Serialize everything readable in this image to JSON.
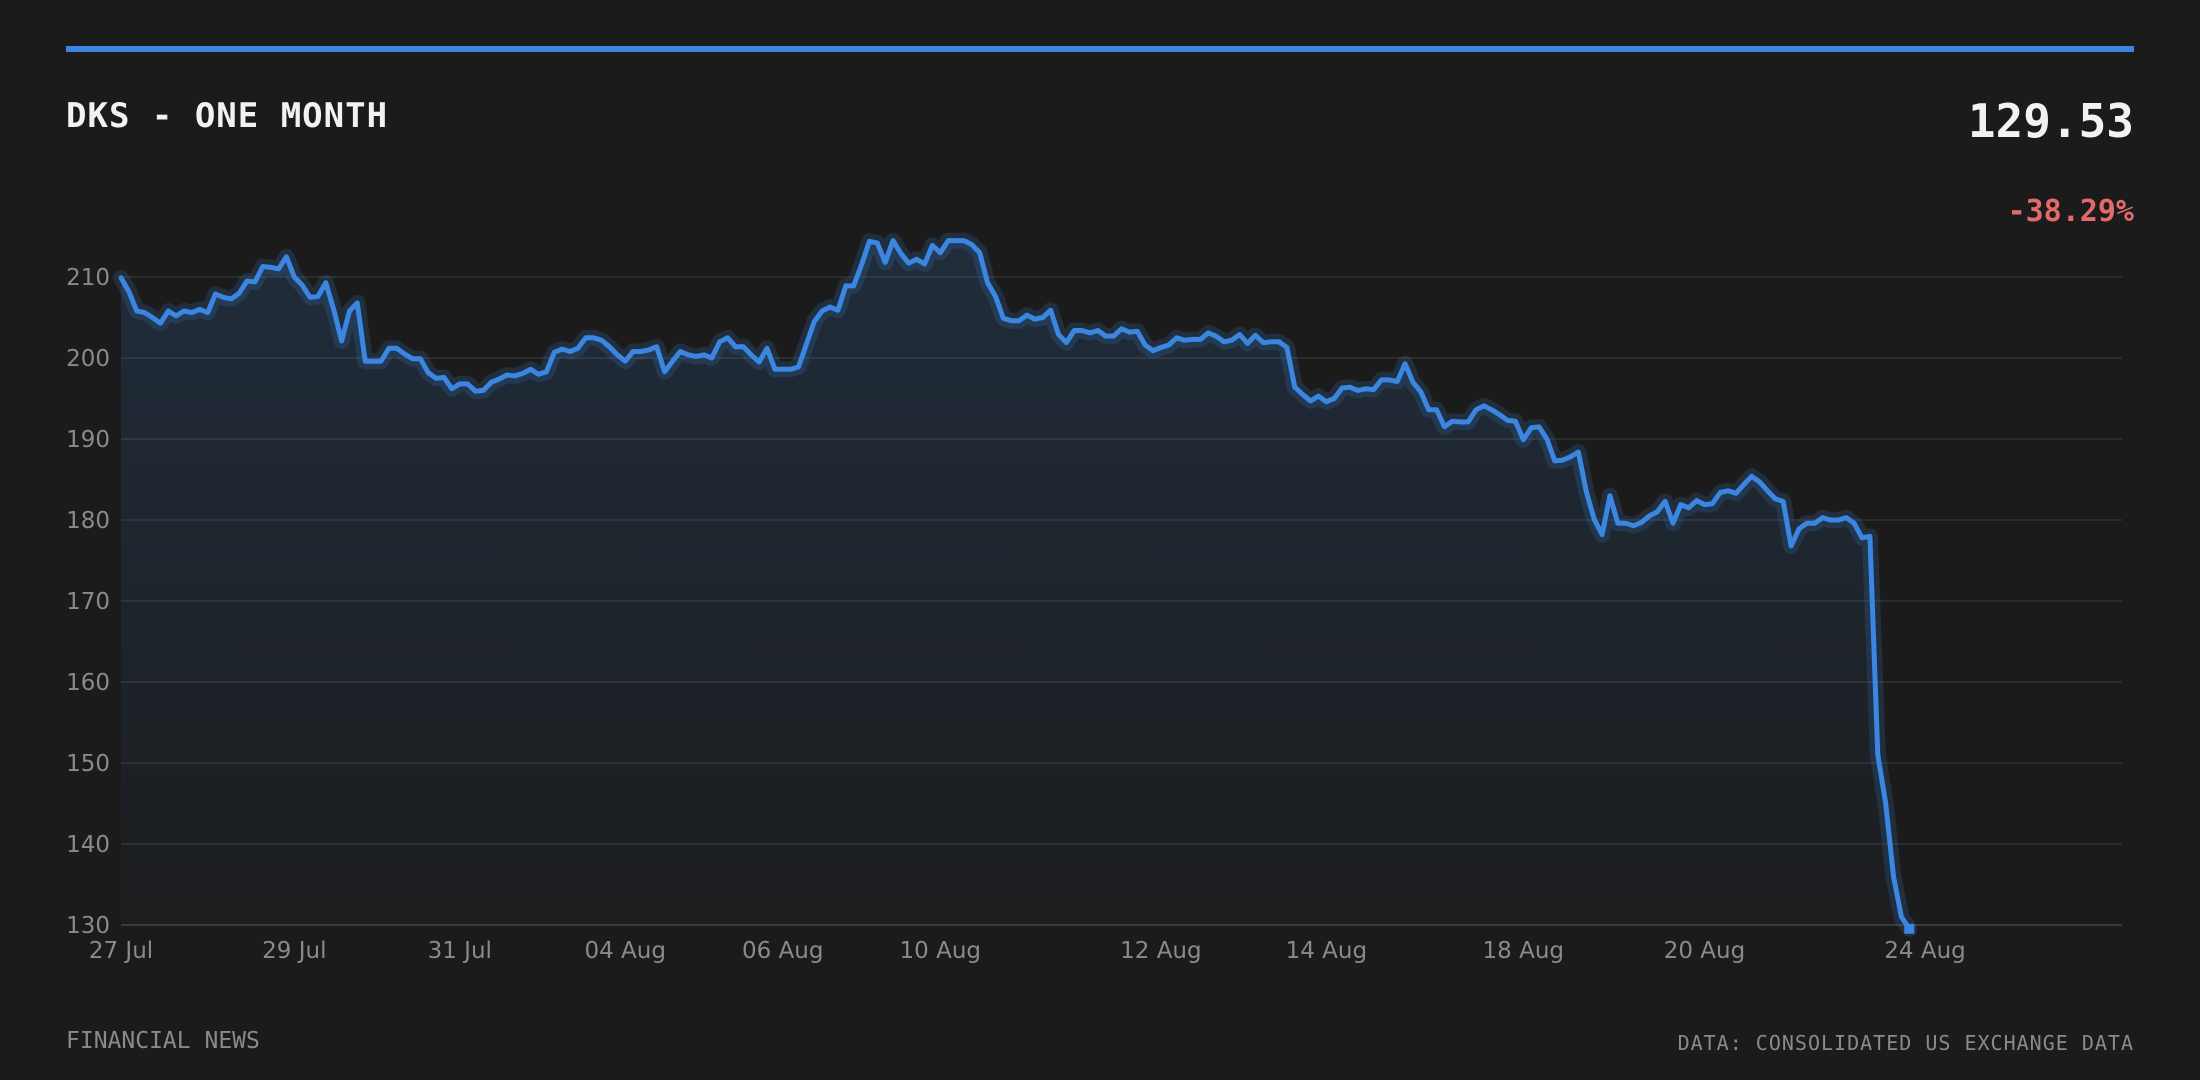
{
  "header": {
    "title": "DKS - ONE MONTH",
    "price": "129.53",
    "change": "-38.29%"
  },
  "footer": {
    "left": "FINANCIAL NEWS",
    "right": "DATA: CONSOLIDATED US EXCHANGE DATA"
  },
  "colors": {
    "accent": "#3a86e0",
    "negative": "#e26a6a",
    "background": "#1b1b1b"
  },
  "chart_data": {
    "type": "line",
    "title": "DKS - ONE MONTH",
    "xlabel": "",
    "ylabel": "",
    "ylim": [
      130,
      210
    ],
    "yticks": [
      210,
      200,
      190,
      180,
      170,
      160,
      150,
      140,
      130
    ],
    "xlim": [
      0,
      254
    ],
    "xticks": [
      {
        "label": "27 Jul",
        "x": 0
      },
      {
        "label": "29 Jul",
        "x": 22
      },
      {
        "label": "31 Jul",
        "x": 43
      },
      {
        "label": "04 Aug",
        "x": 64
      },
      {
        "label": "06 Aug",
        "x": 84
      },
      {
        "label": "10 Aug",
        "x": 104
      },
      {
        "label": "12 Aug",
        "x": 132
      },
      {
        "label": "14 Aug",
        "x": 153
      },
      {
        "label": "18 Aug",
        "x": 178
      },
      {
        "label": "20 Aug",
        "x": 201
      },
      {
        "label": "24 Aug",
        "x": 229
      }
    ],
    "grid": true,
    "area_fill": true,
    "series": [
      {
        "name": "",
        "color": "#3a86e0",
        "points": [
          [
            0,
            209.9
          ],
          [
            1,
            208.2
          ],
          [
            2,
            205.8
          ],
          [
            3,
            205.6
          ],
          [
            4,
            205.0
          ],
          [
            5,
            204.3
          ],
          [
            6,
            205.8
          ],
          [
            7,
            205.2
          ],
          [
            8,
            205.8
          ],
          [
            9,
            205.6
          ],
          [
            10,
            206.0
          ],
          [
            11,
            205.6
          ],
          [
            12,
            207.9
          ],
          [
            13,
            207.5
          ],
          [
            14,
            207.3
          ],
          [
            15,
            208.0
          ],
          [
            16,
            209.5
          ],
          [
            17,
            209.4
          ],
          [
            18,
            211.3
          ],
          [
            19,
            211.2
          ],
          [
            20,
            211.0
          ],
          [
            21,
            212.5
          ],
          [
            22,
            210.0
          ],
          [
            23,
            209.0
          ],
          [
            24,
            207.5
          ],
          [
            25,
            207.6
          ],
          [
            26,
            209.3
          ],
          [
            27,
            206.0
          ],
          [
            28,
            202.1
          ],
          [
            29,
            205.8
          ],
          [
            30,
            206.8
          ],
          [
            31,
            199.6
          ],
          [
            32,
            199.6
          ],
          [
            33,
            199.6
          ],
          [
            34,
            201.2
          ],
          [
            35,
            201.2
          ],
          [
            36,
            200.5
          ],
          [
            37,
            199.9
          ],
          [
            38,
            199.9
          ],
          [
            39,
            198.2
          ],
          [
            40,
            197.5
          ],
          [
            41,
            197.6
          ],
          [
            42,
            196.2
          ],
          [
            43,
            196.8
          ],
          [
            44,
            196.8
          ],
          [
            45,
            195.9
          ],
          [
            46,
            196.0
          ],
          [
            47,
            197.0
          ],
          [
            48,
            197.4
          ],
          [
            49,
            197.9
          ],
          [
            50,
            197.8
          ],
          [
            51,
            198.1
          ],
          [
            52,
            198.6
          ],
          [
            53,
            198.0
          ],
          [
            54,
            198.3
          ],
          [
            55,
            200.7
          ],
          [
            56,
            201.1
          ],
          [
            57,
            200.8
          ],
          [
            58,
            201.2
          ],
          [
            59,
            202.5
          ],
          [
            60,
            202.5
          ],
          [
            61,
            202.2
          ],
          [
            62,
            201.4
          ],
          [
            63,
            200.4
          ],
          [
            64,
            199.6
          ],
          [
            65,
            200.8
          ],
          [
            66,
            200.8
          ],
          [
            67,
            201.0
          ],
          [
            68,
            201.4
          ],
          [
            69,
            198.3
          ],
          [
            70,
            199.6
          ],
          [
            71,
            200.8
          ],
          [
            72,
            200.4
          ],
          [
            73,
            200.2
          ],
          [
            74,
            200.4
          ],
          [
            75,
            200.0
          ],
          [
            76,
            202.0
          ],
          [
            77,
            202.5
          ],
          [
            78,
            201.4
          ],
          [
            79,
            201.4
          ],
          [
            80,
            200.4
          ],
          [
            81,
            199.5
          ],
          [
            82,
            201.2
          ],
          [
            83,
            198.6
          ],
          [
            84,
            198.6
          ],
          [
            85,
            198.6
          ],
          [
            86,
            198.9
          ],
          [
            87,
            201.7
          ],
          [
            88,
            204.5
          ],
          [
            89,
            205.8
          ],
          [
            90,
            206.3
          ],
          [
            91,
            205.9
          ],
          [
            92,
            208.9
          ],
          [
            93,
            208.9
          ],
          [
            94,
            211.5
          ],
          [
            95,
            214.4
          ],
          [
            96,
            214.2
          ],
          [
            97,
            211.8
          ],
          [
            98,
            214.5
          ],
          [
            99,
            212.9
          ],
          [
            100,
            211.7
          ],
          [
            101,
            212.2
          ],
          [
            102,
            211.6
          ],
          [
            103,
            213.9
          ],
          [
            104,
            213.0
          ],
          [
            105,
            214.5
          ],
          [
            106,
            214.5
          ],
          [
            107,
            214.5
          ],
          [
            108,
            214.0
          ],
          [
            109,
            213.0
          ],
          [
            110,
            209.3
          ],
          [
            111,
            207.6
          ],
          [
            112,
            204.9
          ],
          [
            113,
            204.6
          ],
          [
            114,
            204.6
          ],
          [
            115,
            205.3
          ],
          [
            116,
            204.8
          ],
          [
            117,
            205.0
          ],
          [
            118,
            205.9
          ],
          [
            119,
            202.9
          ],
          [
            120,
            201.9
          ],
          [
            121,
            203.4
          ],
          [
            122,
            203.4
          ],
          [
            123,
            203.1
          ],
          [
            124,
            203.4
          ],
          [
            125,
            202.7
          ],
          [
            126,
            202.7
          ],
          [
            127,
            203.6
          ],
          [
            128,
            203.2
          ],
          [
            129,
            203.3
          ],
          [
            130,
            201.6
          ],
          [
            131,
            200.9
          ],
          [
            132,
            201.3
          ],
          [
            133,
            201.6
          ],
          [
            134,
            202.5
          ],
          [
            135,
            202.2
          ],
          [
            136,
            202.3
          ],
          [
            137,
            202.3
          ],
          [
            138,
            203.1
          ],
          [
            139,
            202.7
          ],
          [
            140,
            202.0
          ],
          [
            141,
            202.2
          ],
          [
            142,
            202.9
          ],
          [
            143,
            201.8
          ],
          [
            144,
            202.8
          ],
          [
            145,
            201.9
          ],
          [
            146,
            202.0
          ],
          [
            147,
            202.0
          ],
          [
            148,
            201.3
          ],
          [
            149,
            196.4
          ],
          [
            150,
            195.5
          ],
          [
            151,
            194.7
          ],
          [
            152,
            195.3
          ],
          [
            153,
            194.6
          ],
          [
            154,
            195.0
          ],
          [
            155,
            196.3
          ],
          [
            156,
            196.4
          ],
          [
            157,
            196.0
          ],
          [
            158,
            196.2
          ],
          [
            159,
            196.1
          ],
          [
            160,
            197.3
          ],
          [
            161,
            197.3
          ],
          [
            162,
            197.1
          ],
          [
            163,
            199.3
          ],
          [
            164,
            197.0
          ],
          [
            165,
            195.8
          ],
          [
            166,
            193.6
          ],
          [
            167,
            193.6
          ],
          [
            168,
            191.5
          ],
          [
            169,
            192.2
          ],
          [
            170,
            192.1
          ],
          [
            171,
            192.1
          ],
          [
            172,
            193.6
          ],
          [
            173,
            194.1
          ],
          [
            174,
            193.6
          ],
          [
            175,
            193.0
          ],
          [
            176,
            192.3
          ],
          [
            177,
            192.2
          ],
          [
            178,
            189.9
          ],
          [
            179,
            191.4
          ],
          [
            180,
            191.5
          ],
          [
            181,
            190.0
          ],
          [
            182,
            187.3
          ],
          [
            183,
            187.4
          ],
          [
            184,
            187.8
          ],
          [
            185,
            188.4
          ],
          [
            186,
            183.5
          ],
          [
            187,
            180.1
          ],
          [
            188,
            178.2
          ],
          [
            189,
            183.0
          ],
          [
            190,
            179.6
          ],
          [
            191,
            179.6
          ],
          [
            192,
            179.3
          ],
          [
            193,
            179.7
          ],
          [
            194,
            180.5
          ],
          [
            195,
            181.0
          ],
          [
            196,
            182.3
          ],
          [
            197,
            179.6
          ],
          [
            198,
            181.9
          ],
          [
            199,
            181.5
          ],
          [
            200,
            182.4
          ],
          [
            201,
            181.9
          ],
          [
            202,
            182.0
          ],
          [
            203,
            183.4
          ],
          [
            204,
            183.6
          ],
          [
            205,
            183.3
          ],
          [
            206,
            184.4
          ],
          [
            207,
            185.4
          ],
          [
            208,
            184.7
          ],
          [
            209,
            183.6
          ],
          [
            210,
            182.6
          ],
          [
            211,
            182.3
          ],
          [
            212,
            176.8
          ],
          [
            213,
            178.9
          ],
          [
            214,
            179.6
          ],
          [
            215,
            179.6
          ],
          [
            216,
            180.3
          ],
          [
            217,
            180.0
          ],
          [
            218,
            180.0
          ],
          [
            219,
            180.3
          ],
          [
            220,
            179.6
          ],
          [
            221,
            177.8
          ],
          [
            222,
            178.0
          ],
          [
            223,
            151.0
          ],
          [
            224,
            145.0
          ],
          [
            225,
            136.0
          ],
          [
            226,
            131.0
          ],
          [
            227,
            129.53
          ]
        ]
      }
    ]
  }
}
